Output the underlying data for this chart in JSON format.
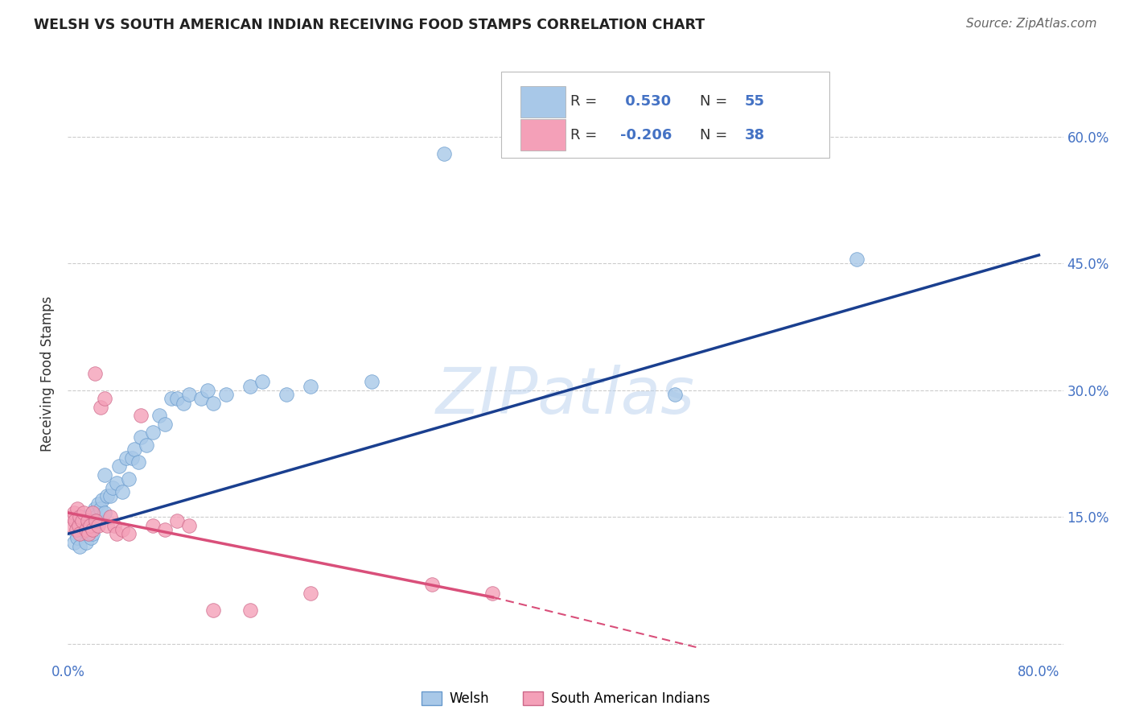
{
  "title": "WELSH VS SOUTH AMERICAN INDIAN RECEIVING FOOD STAMPS CORRELATION CHART",
  "source": "Source: ZipAtlas.com",
  "ylabel": "Receiving Food Stamps",
  "xlim": [
    0.0,
    0.82
  ],
  "ylim": [
    -0.02,
    0.66
  ],
  "x_ticks": [
    0.0,
    0.1,
    0.2,
    0.3,
    0.4,
    0.5,
    0.6,
    0.7,
    0.8
  ],
  "x_tick_labels": [
    "0.0%",
    "",
    "",
    "",
    "",
    "",
    "",
    "",
    "80.0%"
  ],
  "y_ticks": [
    0.0,
    0.15,
    0.3,
    0.45,
    0.6
  ],
  "y_tick_labels": [
    "",
    "15.0%",
    "30.0%",
    "45.0%",
    "60.0%"
  ],
  "welsh_color": "#a8c8e8",
  "welsh_edge_color": "#6699cc",
  "sa_indian_color": "#f4a0b8",
  "sa_indian_edge_color": "#cc6688",
  "welsh_line_color": "#1a3f8f",
  "sa_indian_line_color": "#d94f7a",
  "watermark": "ZIPatlas",
  "legend_welsh_label": "Welsh",
  "legend_sa_label": "South American Indians",
  "welsh_R": "0.530",
  "welsh_N": "55",
  "sa_R": "-0.206",
  "sa_N": "38",
  "welsh_points_x": [
    0.005,
    0.007,
    0.008,
    0.01,
    0.01,
    0.012,
    0.013,
    0.015,
    0.015,
    0.016,
    0.018,
    0.019,
    0.02,
    0.02,
    0.022,
    0.022,
    0.023,
    0.025,
    0.025,
    0.027,
    0.028,
    0.03,
    0.03,
    0.032,
    0.035,
    0.037,
    0.04,
    0.042,
    0.045,
    0.048,
    0.05,
    0.053,
    0.055,
    0.058,
    0.06,
    0.065,
    0.07,
    0.075,
    0.08,
    0.085,
    0.09,
    0.095,
    0.1,
    0.11,
    0.115,
    0.12,
    0.13,
    0.15,
    0.16,
    0.18,
    0.2,
    0.25,
    0.31,
    0.5,
    0.65
  ],
  "welsh_points_y": [
    0.12,
    0.13,
    0.125,
    0.14,
    0.115,
    0.135,
    0.145,
    0.12,
    0.15,
    0.13,
    0.14,
    0.125,
    0.155,
    0.13,
    0.16,
    0.14,
    0.15,
    0.165,
    0.145,
    0.16,
    0.17,
    0.155,
    0.2,
    0.175,
    0.175,
    0.185,
    0.19,
    0.21,
    0.18,
    0.22,
    0.195,
    0.22,
    0.23,
    0.215,
    0.245,
    0.235,
    0.25,
    0.27,
    0.26,
    0.29,
    0.29,
    0.285,
    0.295,
    0.29,
    0.3,
    0.285,
    0.295,
    0.305,
    0.31,
    0.295,
    0.305,
    0.31,
    0.58,
    0.295,
    0.455
  ],
  "sa_points_x": [
    0.003,
    0.004,
    0.005,
    0.006,
    0.007,
    0.008,
    0.009,
    0.01,
    0.01,
    0.012,
    0.013,
    0.015,
    0.016,
    0.017,
    0.018,
    0.02,
    0.02,
    0.022,
    0.023,
    0.025,
    0.027,
    0.03,
    0.032,
    0.035,
    0.038,
    0.04,
    0.045,
    0.05,
    0.06,
    0.07,
    0.08,
    0.09,
    0.1,
    0.12,
    0.15,
    0.2,
    0.3,
    0.35
  ],
  "sa_points_y": [
    0.14,
    0.15,
    0.155,
    0.145,
    0.135,
    0.16,
    0.14,
    0.13,
    0.15,
    0.145,
    0.155,
    0.135,
    0.145,
    0.13,
    0.14,
    0.155,
    0.135,
    0.32,
    0.145,
    0.14,
    0.28,
    0.29,
    0.14,
    0.15,
    0.14,
    0.13,
    0.135,
    0.13,
    0.27,
    0.14,
    0.135,
    0.145,
    0.14,
    0.04,
    0.04,
    0.06,
    0.07,
    0.06
  ],
  "grid_color": "#cccccc",
  "background_color": "#ffffff",
  "tick_color": "#4472C4"
}
